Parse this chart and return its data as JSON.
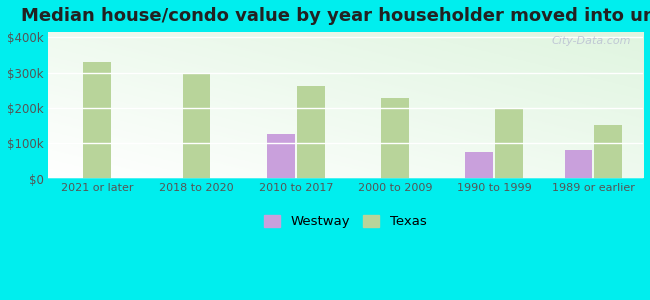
{
  "title": "Median house/condo value by year householder moved into unit",
  "categories": [
    "2021 or later",
    "2018 to 2020",
    "2010 to 2017",
    "2000 to 2009",
    "1990 to 1999",
    "1989 or earlier"
  ],
  "westway_values": [
    null,
    null,
    125000,
    null,
    75000,
    82000
  ],
  "texas_values": [
    330000,
    295000,
    262000,
    228000,
    198000,
    152000
  ],
  "westway_color": "#c9a0dc",
  "texas_color": "#b8d49a",
  "background_color": "#00eeee",
  "plot_bg_color": "#e0f5e0",
  "ytick_labels": [
    "$0",
    "$100k",
    "$200k",
    "$300k",
    "$400k"
  ],
  "ytick_values": [
    0,
    100000,
    200000,
    300000,
    400000
  ],
  "ylim": [
    0,
    415000
  ],
  "bar_width": 0.28,
  "watermark": "City-Data.com",
  "legend_labels": [
    "Westway",
    "Texas"
  ],
  "title_fontsize": 13
}
